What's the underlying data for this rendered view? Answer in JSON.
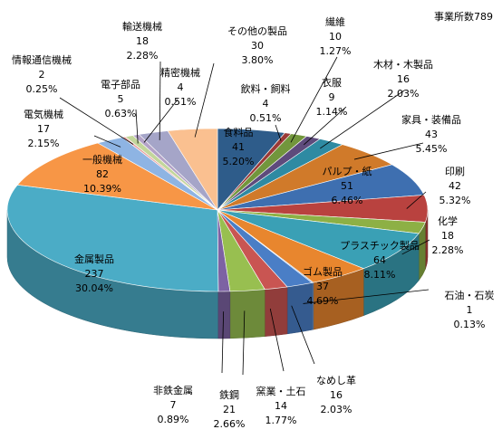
{
  "chart_data": {
    "type": "pie",
    "subtitle": "事業所数789",
    "total": 789,
    "start_angle_deg": 0,
    "slices": [
      {
        "name": "食料品",
        "value": 41,
        "percent": "5.20%",
        "color": "#2e5c8a"
      },
      {
        "name": "飲料・飼料",
        "value": 4,
        "percent": "0.51%",
        "color": "#9b3a37"
      },
      {
        "name": "繊維",
        "value": 10,
        "percent": "1.27%",
        "color": "#72963c"
      },
      {
        "name": "衣服",
        "value": 9,
        "percent": "1.14%",
        "color": "#5e4b7c"
      },
      {
        "name": "木材・木製品",
        "value": 16,
        "percent": "2.03%",
        "color": "#2e8aa2"
      },
      {
        "name": "家具・装備品",
        "value": 43,
        "percent": "5.45%",
        "color": "#d07a2a"
      },
      {
        "name": "パルプ・紙",
        "value": 51,
        "percent": "6.46%",
        "color": "#3e6fb0"
      },
      {
        "name": "印刷",
        "value": 42,
        "percent": "5.32%",
        "color": "#b9423f"
      },
      {
        "name": "化学",
        "value": 18,
        "percent": "2.28%",
        "color": "#8db045"
      },
      {
        "name": "プラスチック製品",
        "value": 64,
        "percent": "8.11%",
        "color": "#3aa0b5"
      },
      {
        "name": "ゴム製品",
        "value": 37,
        "percent": "4.69%",
        "color": "#e8862e"
      },
      {
        "name": "石油・石炭",
        "value": 1,
        "percent": "0.13%",
        "color": "#6f9cd6"
      },
      {
        "name": "なめし革",
        "value": 16,
        "percent": "2.03%",
        "color": "#4a7ec6"
      },
      {
        "name": "窯業・土石",
        "value": 14,
        "percent": "1.77%",
        "color": "#c95552"
      },
      {
        "name": "鉄鋼",
        "value": 21,
        "percent": "2.66%",
        "color": "#98bf50"
      },
      {
        "name": "非鉄金属",
        "value": 7,
        "percent": "0.89%",
        "color": "#7d62a3"
      },
      {
        "name": "金属製品",
        "value": 237,
        "percent": "30.04%",
        "color": "#4bacc6"
      },
      {
        "name": "一般機械",
        "value": 82,
        "percent": "10.39%",
        "color": "#f79646"
      },
      {
        "name": "電気機械",
        "value": 17,
        "percent": "2.15%",
        "color": "#8eb4e3"
      },
      {
        "name": "情報通信機械",
        "value": 2,
        "percent": "0.25%",
        "color": "#e6a09e"
      },
      {
        "name": "電子部品",
        "value": 5,
        "percent": "0.63%",
        "color": "#c3d69b"
      },
      {
        "name": "精密機械",
        "value": 4,
        "percent": "0.51%",
        "color": "#b3a2c7"
      },
      {
        "name": "輸送機械",
        "value": 18,
        "percent": "2.28%",
        "color": "#a5a5c8"
      },
      {
        "name": "その他の製品",
        "value": 30,
        "percent": "3.80%",
        "color": "#fac090"
      }
    ]
  }
}
